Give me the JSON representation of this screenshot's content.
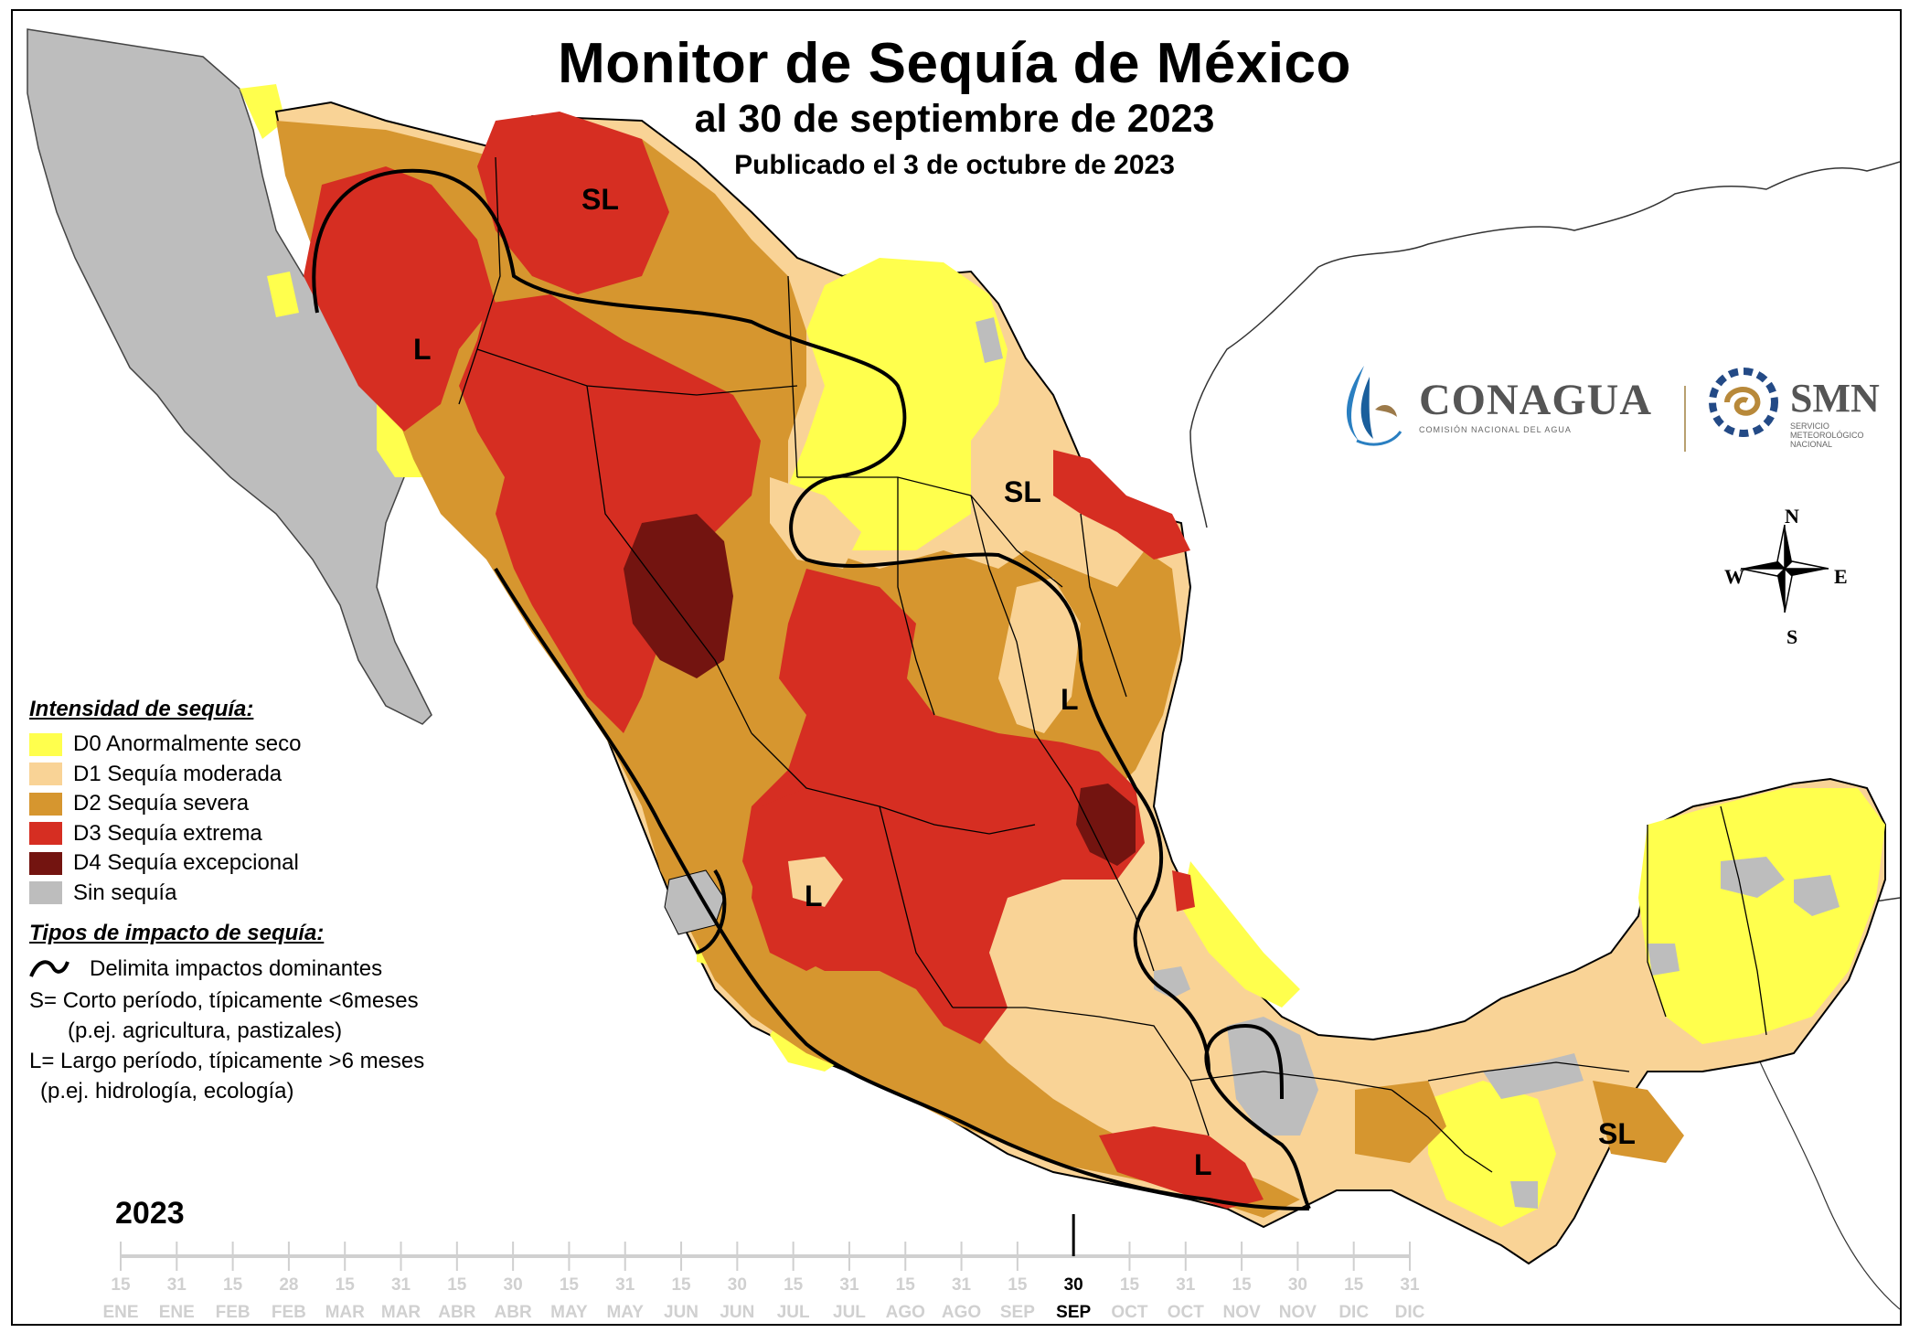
{
  "title": "Monitor de Sequía de México",
  "subtitle": "al 30 de septiembre de 2023",
  "published": "Publicado el 3 de octubre de 2023",
  "colors": {
    "D0": "#ffff4d",
    "D1": "#f9d396",
    "D2": "#d6962f",
    "D3": "#d62e22",
    "D4": "#731410",
    "none": "#bdbdbd"
  },
  "legend": {
    "heading": "Intensidad de sequía:",
    "items": [
      {
        "key": "D0",
        "label": "D0 Anormalmente seco"
      },
      {
        "key": "D1",
        "label": "D1 Sequía moderada"
      },
      {
        "key": "D2",
        "label": "D2 Sequía severa"
      },
      {
        "key": "D3",
        "label": "D3 Sequía extrema"
      },
      {
        "key": "D4",
        "label": "D4 Sequía excepcional"
      },
      {
        "key": "none",
        "label": "Sin sequía"
      }
    ]
  },
  "impact": {
    "heading": "Tipos de impacto de sequía:",
    "line_label": "Delimita impactos dominantes",
    "short_1": "S= Corto período, típicamente <6meses",
    "short_2": "(p.ej. agricultura, pastizales)",
    "long_1": "L= Largo período, típicamente >6 meses",
    "long_2": "(p.ej. hidrología, ecología)"
  },
  "map_labels": {
    "sl_sonora": "SL",
    "l_sonora": "L",
    "sl_tamaulipas": "SL",
    "l_slp": "L",
    "l_jalisco": "L",
    "l_oaxaca": "L",
    "sl_yucatan": "SL"
  },
  "logos": {
    "conagua_name": "CONAGUA",
    "conagua_sub": "COMISIÓN NACIONAL DEL AGUA",
    "smn_name": "SMN",
    "smn_sub": "SERVICIO METEOROLÓGICO NACIONAL",
    "conagua_icon": "conagua-drop-icon",
    "smn_icon": "smn-spiral-icon"
  },
  "compass": {
    "n": "N",
    "s": "S",
    "e": "E",
    "w": "W",
    "icon": "compass-rose-icon"
  },
  "timeline": {
    "year": "2023",
    "current_index": 17,
    "ticks": [
      {
        "day": "15",
        "mon": "ENE"
      },
      {
        "day": "31",
        "mon": "ENE"
      },
      {
        "day": "15",
        "mon": "FEB"
      },
      {
        "day": "28",
        "mon": "FEB"
      },
      {
        "day": "15",
        "mon": "MAR"
      },
      {
        "day": "31",
        "mon": "MAR"
      },
      {
        "day": "15",
        "mon": "ABR"
      },
      {
        "day": "30",
        "mon": "ABR"
      },
      {
        "day": "15",
        "mon": "MAY"
      },
      {
        "day": "31",
        "mon": "MAY"
      },
      {
        "day": "15",
        "mon": "JUN"
      },
      {
        "day": "30",
        "mon": "JUN"
      },
      {
        "day": "15",
        "mon": "JUL"
      },
      {
        "day": "31",
        "mon": "JUL"
      },
      {
        "day": "15",
        "mon": "AGO"
      },
      {
        "day": "31",
        "mon": "AGO"
      },
      {
        "day": "15",
        "mon": "SEP"
      },
      {
        "day": "30",
        "mon": "SEP"
      },
      {
        "day": "15",
        "mon": "OCT"
      },
      {
        "day": "31",
        "mon": "OCT"
      },
      {
        "day": "15",
        "mon": "NOV"
      },
      {
        "day": "30",
        "mon": "NOV"
      },
      {
        "day": "15",
        "mon": "DIC"
      },
      {
        "day": "31",
        "mon": "DIC"
      }
    ]
  }
}
